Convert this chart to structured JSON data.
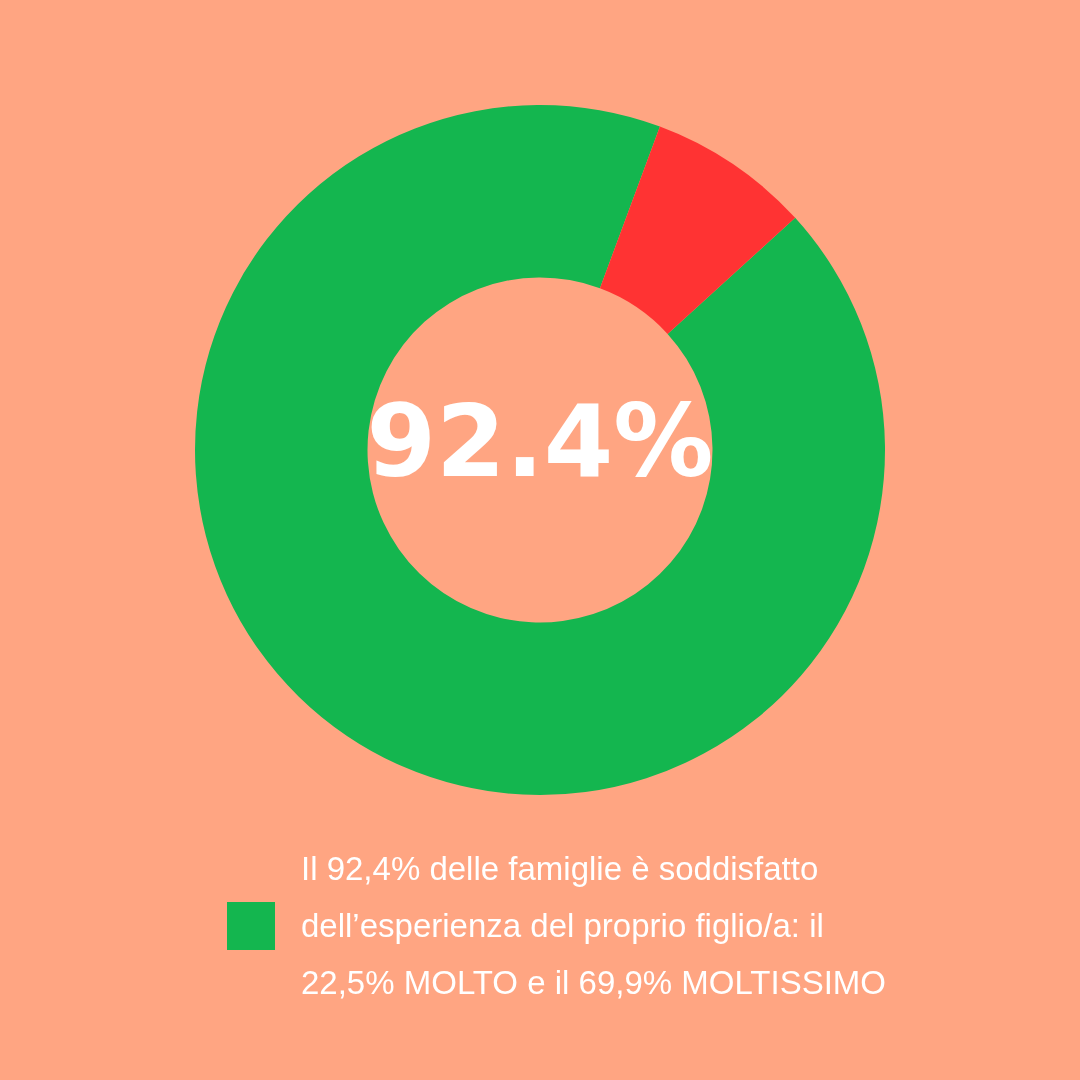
{
  "chart_data": {
    "type": "donut",
    "categories": [
      "Il 92,4% delle famiglie è soddisfatto dell’esperienza del proprio figlio/a: il 22,5% MOLTO e il 69,9% MOLTISSIMO",
      null
    ],
    "values": [
      92.4,
      7.6
    ],
    "colors": [
      "#14b64f",
      "#ff3333"
    ],
    "annotations": [
      "92.4%"
    ],
    "legend": "bottom"
  }
}
